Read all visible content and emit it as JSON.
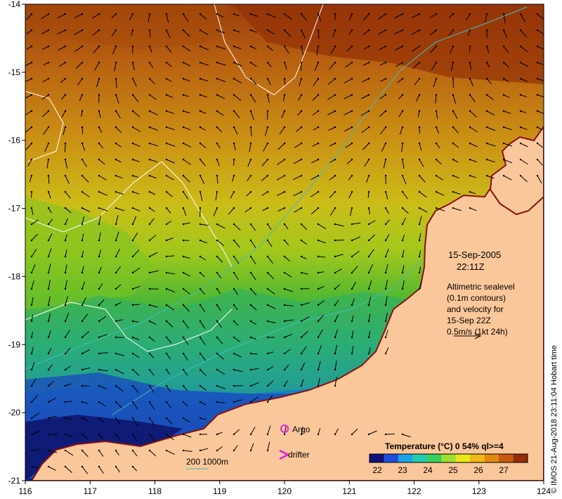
{
  "map": {
    "lon_ticks": [
      "116",
      "117",
      "118",
      "119",
      "120",
      "121",
      "122",
      "123",
      "124"
    ],
    "lat_ticks": [
      "-14",
      "-15",
      "-16",
      "-17",
      "-18",
      "-19",
      "-20",
      "-21"
    ],
    "lon_range": [
      116,
      124
    ],
    "lat_range": [
      -14,
      -21
    ]
  },
  "annotation": {
    "date": "15-Sep-2005",
    "time": "22:11Z",
    "altimetry_lines": [
      "Altimetric sealevel",
      "(0.1m contours)",
      "and velocity for",
      "15-Sep 22Z",
      "0.5m/s (1kt 24h)"
    ]
  },
  "legend": {
    "argo_label": "Argo",
    "drifter_label": "drifter",
    "isobath_label": "200  1000m",
    "argo_color": "#e020e0",
    "drifter_color": "#e020e0"
  },
  "colorbar": {
    "title": "Temperature (°C) 0 54% ql>=4",
    "ticks": [
      "22",
      "23",
      "24",
      "25",
      "26",
      "27"
    ],
    "colors": [
      "#10127a",
      "#1f4fd8",
      "#1aa3e8",
      "#23c9b0",
      "#38d060",
      "#9ee030",
      "#e8e81a",
      "#f0b818",
      "#e08810",
      "#c85a10",
      "#962c08"
    ]
  },
  "credit": "© IMOS 21-Aug-2018 23:11:04 Hobart time",
  "colors": {
    "land": "#fac79a",
    "coast_outline": "#8a1010",
    "contour": "#ffffff",
    "isobath": "#3fbfbf"
  }
}
